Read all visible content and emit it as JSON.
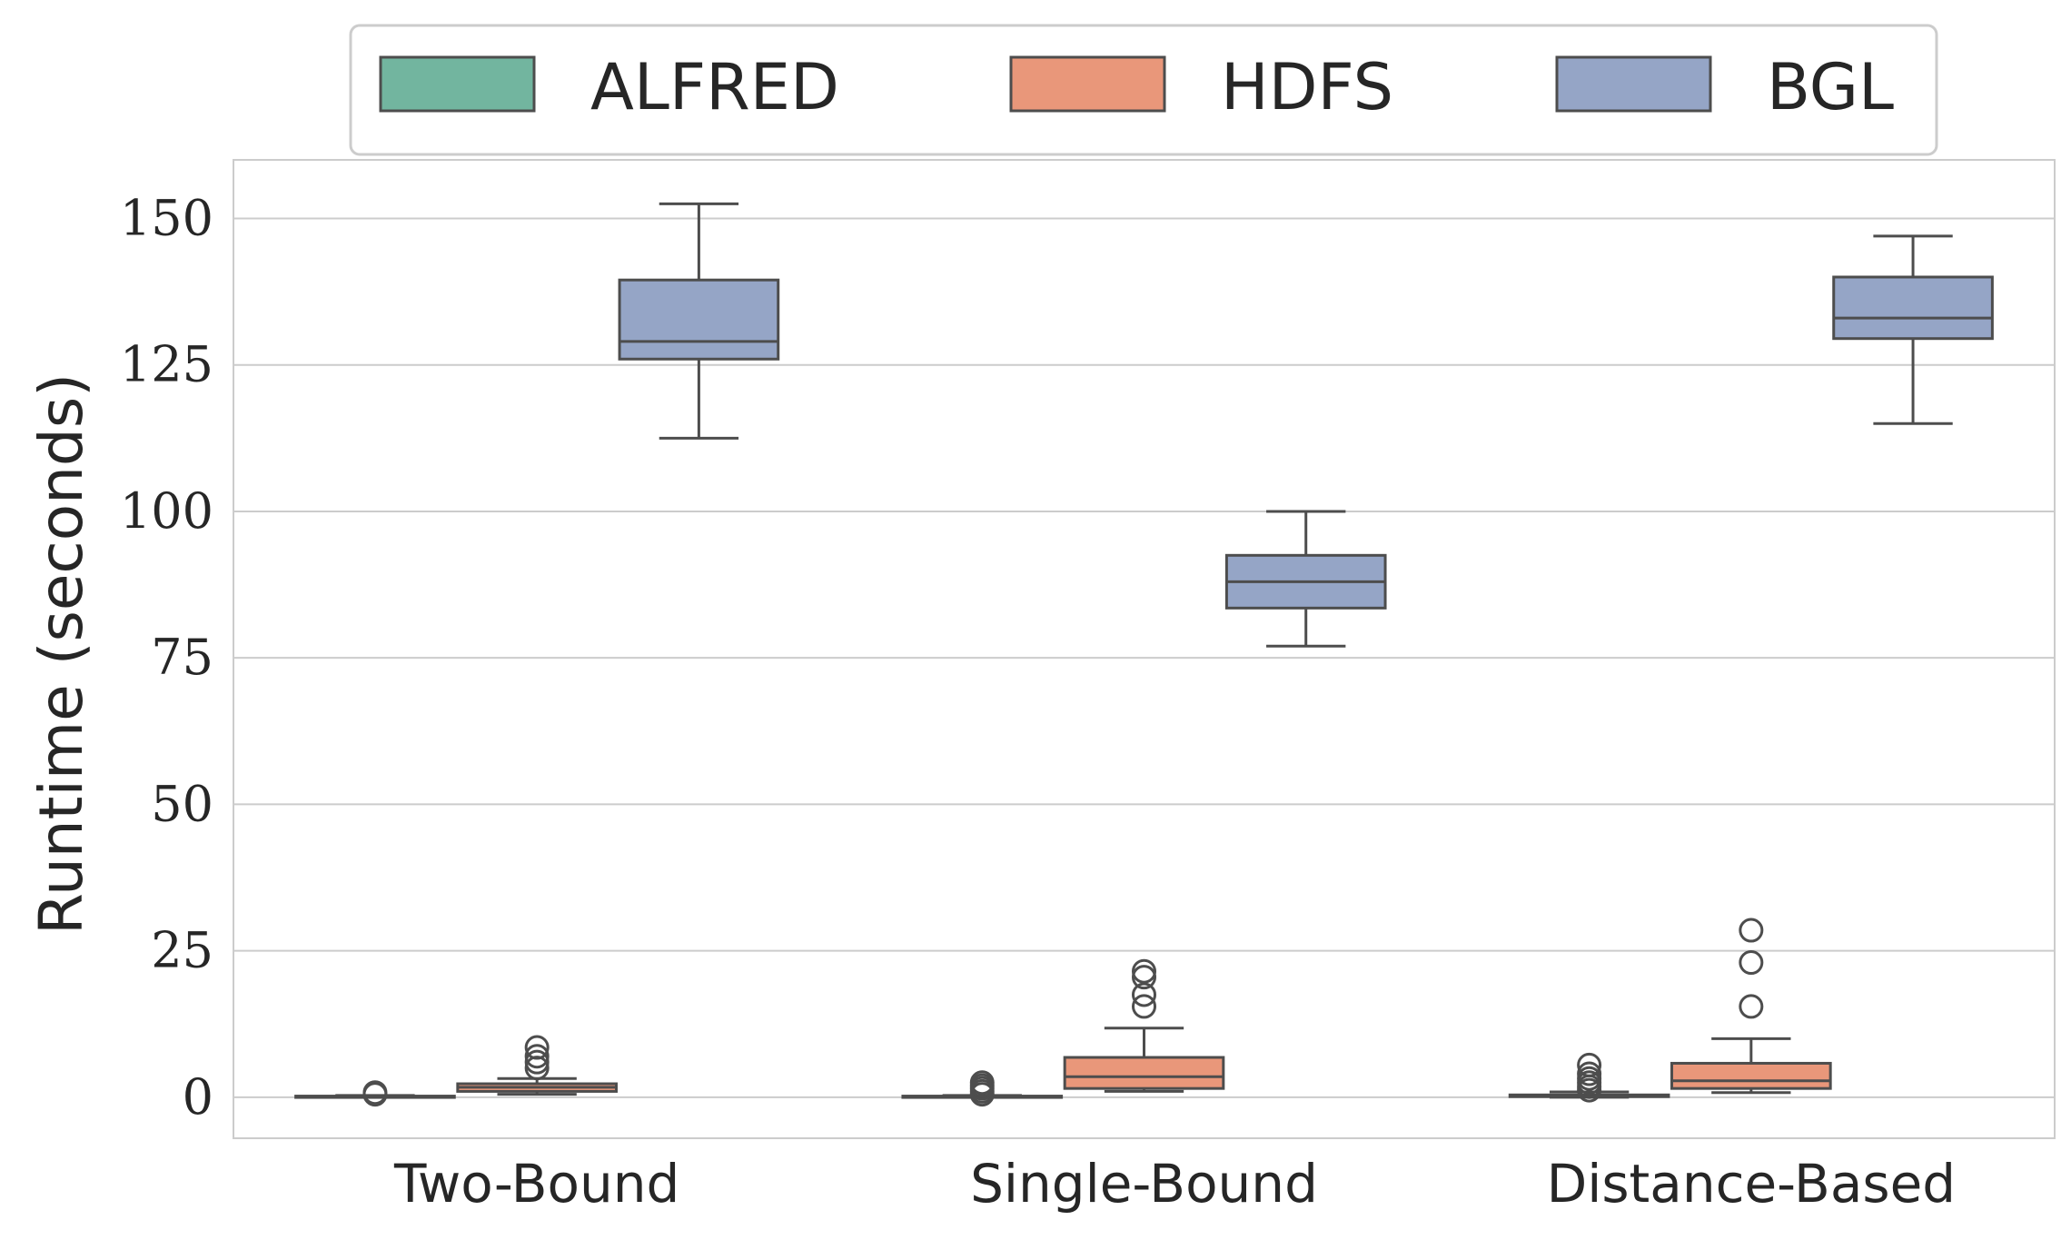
{
  "chart_data": {
    "type": "box",
    "categories": [
      "Two-Bound",
      "Single-Bound",
      "Distance-Based"
    ],
    "ylabel": "Runtime (seconds)",
    "xlabel": "",
    "ylim": [
      -7,
      160
    ],
    "yticks": [
      "0",
      "25",
      "50",
      "75",
      "100",
      "125",
      "150"
    ],
    "grid": true,
    "legend_position": "top-center",
    "series": [
      {
        "name": "ALFRED",
        "color": "#72b59f",
        "boxes": [
          {
            "whislo": 0.0,
            "q1": 0.0,
            "med": 0.1,
            "q3": 0.2,
            "whishi": 0.3,
            "fliers": [
              0.5,
              0.8
            ]
          },
          {
            "whislo": 0.0,
            "q1": 0.0,
            "med": 0.1,
            "q3": 0.2,
            "whishi": 0.3,
            "fliers": [
              0.5,
              1.0,
              1.5,
              2.0,
              2.5
            ]
          },
          {
            "whislo": 0.0,
            "q1": 0.1,
            "med": 0.2,
            "q3": 0.4,
            "whishi": 0.9,
            "fliers": [
              1.2,
              1.8,
              2.5,
              3.2,
              4.0,
              5.5
            ]
          }
        ]
      },
      {
        "name": "HDFS",
        "color": "#e9977a",
        "boxes": [
          {
            "whislo": 0.5,
            "q1": 1.0,
            "med": 1.7,
            "q3": 2.3,
            "whishi": 3.2,
            "fliers": [
              5.0,
              6.0,
              7.0,
              8.5
            ]
          },
          {
            "whislo": 1.0,
            "q1": 1.5,
            "med": 3.5,
            "q3": 6.8,
            "whishi": 11.8,
            "fliers": [
              15.5,
              17.5,
              20.5,
              21.5
            ]
          },
          {
            "whislo": 0.8,
            "q1": 1.5,
            "med": 2.8,
            "q3": 5.8,
            "whishi": 10.0,
            "fliers": [
              15.5,
              23.0,
              28.5
            ]
          }
        ]
      },
      {
        "name": "BGL",
        "color": "#95a5c6",
        "boxes": [
          {
            "whislo": 112.5,
            "q1": 126.0,
            "med": 129.0,
            "q3": 139.5,
            "whishi": 152.5,
            "fliers": []
          },
          {
            "whislo": 77.0,
            "q1": 83.5,
            "med": 88.0,
            "q3": 92.5,
            "whishi": 100.0,
            "fliers": []
          },
          {
            "whislo": 115.0,
            "q1": 129.5,
            "med": 133.0,
            "q3": 140.0,
            "whishi": 147.0,
            "fliers": []
          }
        ]
      }
    ]
  }
}
